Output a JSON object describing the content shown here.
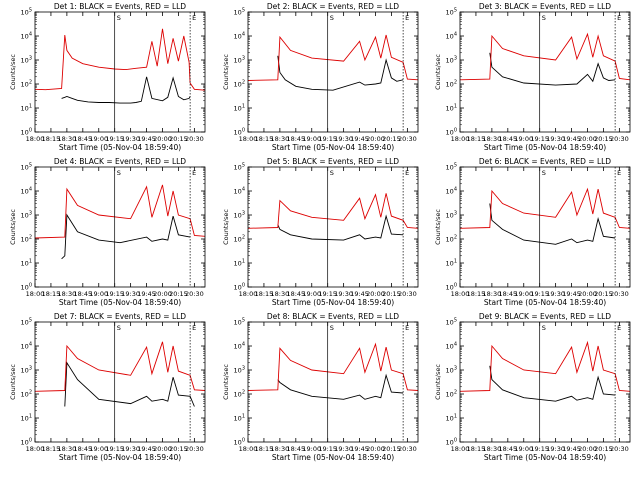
{
  "figure": {
    "xlabel": "Start Time (05-Nov-04 18:59:40)",
    "ylabel": "Counts/sec",
    "colors": {
      "events": "#000000",
      "lld": "#dd0000",
      "axes": "#000000",
      "background": "#ffffff"
    }
  },
  "chart_data": [
    {
      "type": "line",
      "title": "Det 1: BLACK = Events, RED = LLD",
      "xlabel": "Start Time (05-Nov-04 18:59:40)",
      "ylabel": "Counts/sec",
      "xlim": [
        "18:00",
        "20:40"
      ],
      "x_ticks": [
        "18:00",
        "18:15",
        "18:30",
        "18:45",
        "19:00",
        "19:15",
        "19:30",
        "19:45",
        "20:00",
        "20:15",
        "20:30"
      ],
      "ylim": [
        1,
        100000
      ],
      "yscale": "log",
      "y_ticks": [
        "10^0",
        "10^1",
        "10^2",
        "10^3",
        "10^4",
        "10^5"
      ],
      "markers": {
        "vertical_lines": [
          "19:15",
          "20:26"
        ],
        "labels": [
          "S",
          "E"
        ]
      },
      "series": [
        {
          "color": "#000000",
          "x": [
            "18:25",
            "18:28",
            "18:30",
            "18:35",
            "18:40",
            "18:50",
            "19:00",
            "19:10",
            "19:20",
            "19:30",
            "19:35",
            "19:40",
            "19:45",
            "19:50",
            "20:00",
            "20:05",
            "20:10",
            "20:15",
            "20:20",
            "20:25",
            "20:26"
          ],
          "y": [
            25,
            28,
            30,
            25,
            21,
            18,
            17,
            17,
            16,
            16,
            17,
            19,
            200,
            25,
            20,
            28,
            180,
            30,
            22,
            25,
            30
          ]
        },
        {
          "color": "#dd0000",
          "x": [
            "18:00",
            "18:10",
            "18:25",
            "18:28",
            "18:30",
            "18:35",
            "18:45",
            "19:00",
            "19:15",
            "19:25",
            "19:35",
            "19:45",
            "19:50",
            "19:55",
            "20:00",
            "20:05",
            "20:10",
            "20:15",
            "20:20",
            "20:25",
            "20:26",
            "20:30",
            "20:40"
          ],
          "y": [
            60,
            58,
            65,
            11000,
            2500,
            1200,
            700,
            500,
            420,
            400,
            450,
            500,
            6000,
            550,
            20000,
            700,
            8000,
            900,
            10000,
            800,
            110,
            60,
            55
          ]
        }
      ]
    },
    {
      "type": "line",
      "title": "Det 2: BLACK = Events, RED = LLD",
      "xlabel": "Start Time (05-Nov-04 18:59:40)",
      "ylabel": "Counts/sec",
      "xlim": [
        "18:00",
        "20:40"
      ],
      "x_ticks": [
        "18:00",
        "18:15",
        "18:30",
        "18:45",
        "19:00",
        "19:15",
        "19:30",
        "19:45",
        "20:00",
        "20:15",
        "20:30"
      ],
      "ylim": [
        1,
        100000
      ],
      "yscale": "log",
      "y_ticks": [
        "10^0",
        "10^1",
        "10^2",
        "10^3",
        "10^4",
        "10^5"
      ],
      "markers": {
        "vertical_lines": [
          "19:15",
          "20:26"
        ],
        "labels": [
          "S",
          "E"
        ]
      },
      "series": [
        {
          "color": "#000000",
          "x": [
            "18:28",
            "18:30",
            "18:35",
            "18:45",
            "19:00",
            "19:20",
            "19:45",
            "19:50",
            "20:00",
            "20:05",
            "20:10",
            "20:15",
            "20:20",
            "20:26"
          ],
          "y": [
            1500,
            300,
            150,
            80,
            60,
            55,
            120,
            90,
            100,
            110,
            1000,
            180,
            130,
            150
          ]
        },
        {
          "color": "#dd0000",
          "x": [
            "18:00",
            "18:28",
            "18:30",
            "18:40",
            "19:00",
            "19:30",
            "19:45",
            "19:50",
            "20:00",
            "20:05",
            "20:10",
            "20:15",
            "20:26",
            "20:30",
            "20:40"
          ],
          "y": [
            140,
            150,
            9000,
            2500,
            1200,
            900,
            6000,
            1000,
            9000,
            1200,
            11000,
            1300,
            800,
            160,
            150
          ]
        }
      ]
    },
    {
      "type": "line",
      "title": "Det 3: BLACK = Events, RED = LLD",
      "xlabel": "Start Time (05-Nov-04 18:59:40)",
      "ylabel": "Counts/sec",
      "xlim": [
        "18:00",
        "20:40"
      ],
      "x_ticks": [
        "18:00",
        "18:15",
        "18:30",
        "18:45",
        "19:00",
        "19:15",
        "19:30",
        "19:45",
        "20:00",
        "20:15",
        "20:30"
      ],
      "ylim": [
        1,
        100000
      ],
      "yscale": "log",
      "y_ticks": [
        "10^0",
        "10^1",
        "10^2",
        "10^3",
        "10^4",
        "10^5"
      ],
      "markers": {
        "vertical_lines": [
          "19:15",
          "20:26"
        ],
        "labels": [
          "S",
          "E"
        ]
      },
      "series": [
        {
          "color": "#000000",
          "x": [
            "18:28",
            "18:30",
            "18:40",
            "19:00",
            "19:30",
            "19:50",
            "20:00",
            "20:05",
            "20:10",
            "20:15",
            "20:20",
            "20:26"
          ],
          "y": [
            2000,
            500,
            200,
            110,
            90,
            100,
            250,
            130,
            700,
            180,
            140,
            150
          ]
        },
        {
          "color": "#dd0000",
          "x": [
            "18:00",
            "18:28",
            "18:30",
            "18:40",
            "19:00",
            "19:30",
            "19:45",
            "19:50",
            "20:00",
            "20:05",
            "20:10",
            "20:15",
            "20:26",
            "20:30",
            "20:40"
          ],
          "y": [
            150,
            160,
            10000,
            3000,
            1500,
            1000,
            9000,
            1100,
            12000,
            1300,
            10000,
            1500,
            900,
            170,
            150
          ]
        }
      ]
    },
    {
      "type": "line",
      "title": "Det 4: BLACK = Events, RED = LLD",
      "xlabel": "Start Time (05-Nov-04 18:59:40)",
      "ylabel": "Counts/sec",
      "xlim": [
        "18:00",
        "20:40"
      ],
      "x_ticks": [
        "18:00",
        "18:15",
        "18:30",
        "18:45",
        "19:00",
        "19:15",
        "19:30",
        "19:45",
        "20:00",
        "20:15",
        "20:30"
      ],
      "ylim": [
        1,
        100000
      ],
      "yscale": "log",
      "y_ticks": [
        "10^0",
        "10^1",
        "10^2",
        "10^3",
        "10^4",
        "10^5"
      ],
      "markers": {
        "vertical_lines": [
          "19:15",
          "20:26"
        ],
        "labels": [
          "S",
          "E"
        ]
      },
      "series": [
        {
          "color": "#000000",
          "x": [
            "18:25",
            "18:28",
            "18:30",
            "18:40",
            "19:00",
            "19:20",
            "19:45",
            "19:50",
            "20:00",
            "20:05",
            "20:10",
            "20:15",
            "20:26"
          ],
          "y": [
            15,
            20,
            1000,
            200,
            90,
            70,
            120,
            80,
            100,
            90,
            900,
            150,
            120
          ]
        },
        {
          "color": "#dd0000",
          "x": [
            "18:00",
            "18:28",
            "18:30",
            "18:40",
            "19:00",
            "19:30",
            "19:45",
            "19:50",
            "20:00",
            "20:05",
            "20:10",
            "20:15",
            "20:26",
            "20:30",
            "20:40"
          ],
          "y": [
            110,
            120,
            12000,
            2500,
            1000,
            700,
            15000,
            800,
            18000,
            900,
            10000,
            1000,
            700,
            140,
            130
          ]
        }
      ]
    },
    {
      "type": "line",
      "title": "Det 5: BLACK = Events, RED = LLD",
      "xlabel": "Start Time (05-Nov-04 18:59:40)",
      "ylabel": "Counts/sec",
      "xlim": [
        "18:00",
        "20:40"
      ],
      "x_ticks": [
        "18:00",
        "18:15",
        "18:30",
        "18:45",
        "19:00",
        "19:15",
        "19:30",
        "19:45",
        "20:00",
        "20:15",
        "20:30"
      ],
      "ylim": [
        1,
        100000
      ],
      "yscale": "log",
      "y_ticks": [
        "10^0",
        "10^1",
        "10^2",
        "10^3",
        "10^4",
        "10^5"
      ],
      "markers": {
        "vertical_lines": [
          "19:15",
          "20:26"
        ],
        "labels": [
          "S",
          "E"
        ]
      },
      "series": [
        {
          "color": "#000000",
          "x": [
            "18:28",
            "18:30",
            "18:40",
            "19:00",
            "19:30",
            "19:45",
            "19:50",
            "20:00",
            "20:05",
            "20:10",
            "20:15",
            "20:26"
          ],
          "y": [
            400,
            250,
            150,
            100,
            90,
            150,
            100,
            120,
            110,
            900,
            160,
            150
          ]
        },
        {
          "color": "#dd0000",
          "x": [
            "18:00",
            "18:28",
            "18:30",
            "18:40",
            "19:00",
            "19:30",
            "19:45",
            "19:50",
            "20:00",
            "20:05",
            "20:10",
            "20:15",
            "20:26",
            "20:30",
            "20:40"
          ],
          "y": [
            280,
            300,
            4000,
            1500,
            800,
            600,
            5000,
            700,
            7000,
            800,
            8000,
            900,
            600,
            300,
            280
          ]
        }
      ]
    },
    {
      "type": "line",
      "title": "Det 6: BLACK = Events, RED = LLD",
      "xlabel": "Start Time (05-Nov-04 18:59:40)",
      "ylabel": "Counts/sec",
      "xlim": [
        "18:00",
        "20:40"
      ],
      "x_ticks": [
        "18:00",
        "18:15",
        "18:30",
        "18:45",
        "19:00",
        "19:15",
        "19:30",
        "19:45",
        "20:00",
        "20:15",
        "20:30"
      ],
      "ylim": [
        1,
        100000
      ],
      "yscale": "log",
      "y_ticks": [
        "10^0",
        "10^1",
        "10^2",
        "10^3",
        "10^4",
        "10^5"
      ],
      "markers": {
        "vertical_lines": [
          "19:15",
          "20:26"
        ],
        "labels": [
          "S",
          "E"
        ]
      },
      "series": [
        {
          "color": "#000000",
          "x": [
            "18:28",
            "18:30",
            "18:40",
            "19:00",
            "19:30",
            "19:45",
            "19:50",
            "20:00",
            "20:05",
            "20:10",
            "20:15",
            "20:26"
          ],
          "y": [
            3000,
            600,
            250,
            90,
            60,
            100,
            70,
            90,
            80,
            700,
            130,
            110
          ]
        },
        {
          "color": "#dd0000",
          "x": [
            "18:00",
            "18:28",
            "18:30",
            "18:40",
            "19:00",
            "19:30",
            "19:45",
            "19:50",
            "20:00",
            "20:05",
            "20:10",
            "20:15",
            "20:26",
            "20:30",
            "20:40"
          ],
          "y": [
            280,
            300,
            10000,
            3000,
            1200,
            800,
            9000,
            1000,
            12000,
            1100,
            12000,
            1200,
            800,
            300,
            280
          ]
        }
      ]
    },
    {
      "type": "line",
      "title": "Det 7: BLACK = Events, RED = LLD",
      "xlabel": "Start Time (05-Nov-04 18:59:40)",
      "ylabel": "Counts/sec",
      "xlim": [
        "18:00",
        "20:40"
      ],
      "x_ticks": [
        "18:00",
        "18:15",
        "18:30",
        "18:45",
        "19:00",
        "19:15",
        "19:30",
        "19:45",
        "20:00",
        "20:15",
        "20:30"
      ],
      "ylim": [
        1,
        100000
      ],
      "yscale": "log",
      "y_ticks": [
        "10^0",
        "10^1",
        "10^2",
        "10^3",
        "10^4",
        "10^5"
      ],
      "markers": {
        "vertical_lines": [
          "19:15",
          "20:26"
        ],
        "labels": [
          "S",
          "E"
        ]
      },
      "series": [
        {
          "color": "#000000",
          "x": [
            "18:28",
            "18:30",
            "18:40",
            "19:00",
            "19:30",
            "19:45",
            "19:50",
            "20:00",
            "20:05",
            "20:10",
            "20:15",
            "20:26",
            "20:30"
          ],
          "y": [
            30,
            2000,
            400,
            60,
            40,
            80,
            50,
            60,
            50,
            500,
            90,
            80,
            30
          ]
        },
        {
          "color": "#dd0000",
          "x": [
            "18:00",
            "18:28",
            "18:30",
            "18:40",
            "19:00",
            "19:30",
            "19:45",
            "19:50",
            "20:00",
            "20:05",
            "20:10",
            "20:15",
            "20:26",
            "20:30",
            "20:40"
          ],
          "y": [
            130,
            140,
            10000,
            3000,
            1000,
            600,
            9000,
            700,
            15000,
            800,
            10000,
            900,
            600,
            150,
            140
          ]
        }
      ]
    },
    {
      "type": "line",
      "title": "Det 8: BLACK = Events, RED = LLD",
      "xlabel": "Start Time (05-Nov-04 18:59:40)",
      "ylabel": "Counts/sec",
      "xlim": [
        "18:00",
        "20:40"
      ],
      "x_ticks": [
        "18:00",
        "18:15",
        "18:30",
        "18:45",
        "19:00",
        "19:15",
        "19:30",
        "19:45",
        "20:00",
        "20:15",
        "20:30"
      ],
      "ylim": [
        1,
        100000
      ],
      "yscale": "log",
      "y_ticks": [
        "10^0",
        "10^1",
        "10^2",
        "10^3",
        "10^4",
        "10^5"
      ],
      "markers": {
        "vertical_lines": [
          "19:15",
          "20:26"
        ],
        "labels": [
          "S",
          "E"
        ]
      },
      "series": [
        {
          "color": "#000000",
          "x": [
            "18:28",
            "18:30",
            "18:40",
            "19:00",
            "19:30",
            "19:45",
            "19:50",
            "20:00",
            "20:05",
            "20:10",
            "20:15",
            "20:26"
          ],
          "y": [
            400,
            300,
            150,
            80,
            60,
            90,
            60,
            80,
            70,
            600,
            120,
            110
          ]
        },
        {
          "color": "#dd0000",
          "x": [
            "18:00",
            "18:28",
            "18:30",
            "18:40",
            "19:00",
            "19:30",
            "19:45",
            "19:50",
            "20:00",
            "20:05",
            "20:10",
            "20:15",
            "20:26",
            "20:30",
            "20:40"
          ],
          "y": [
            140,
            150,
            8000,
            2500,
            1000,
            700,
            8000,
            800,
            12000,
            900,
            9000,
            1000,
            700,
            150,
            140
          ]
        }
      ]
    },
    {
      "type": "line",
      "title": "Det 9: BLACK = Events, RED = LLD",
      "xlabel": "Start Time (05-Nov-04 18:59:40)",
      "ylabel": "Counts/sec",
      "xlim": [
        "18:00",
        "20:40"
      ],
      "x_ticks": [
        "18:00",
        "18:15",
        "18:30",
        "18:45",
        "19:00",
        "19:15",
        "19:30",
        "19:45",
        "20:00",
        "20:15",
        "20:30"
      ],
      "ylim": [
        1,
        100000
      ],
      "yscale": "log",
      "y_ticks": [
        "10^0",
        "10^1",
        "10^2",
        "10^3",
        "10^4",
        "10^5"
      ],
      "markers": {
        "vertical_lines": [
          "19:15",
          "20:26"
        ],
        "labels": [
          "S",
          "E"
        ]
      },
      "series": [
        {
          "color": "#000000",
          "x": [
            "18:28",
            "18:30",
            "18:40",
            "19:00",
            "19:30",
            "19:45",
            "19:50",
            "20:00",
            "20:05",
            "20:10",
            "20:15",
            "20:26"
          ],
          "y": [
            1500,
            400,
            150,
            70,
            50,
            80,
            55,
            70,
            60,
            500,
            100,
            90
          ]
        },
        {
          "color": "#dd0000",
          "x": [
            "18:00",
            "18:28",
            "18:30",
            "18:40",
            "19:00",
            "19:30",
            "19:45",
            "19:50",
            "20:00",
            "20:05",
            "20:10",
            "20:15",
            "20:26",
            "20:30",
            "20:40"
          ],
          "y": [
            130,
            140,
            10000,
            3000,
            1000,
            700,
            9000,
            800,
            14000,
            900,
            10000,
            1000,
            700,
            140,
            130
          ]
        }
      ]
    }
  ]
}
